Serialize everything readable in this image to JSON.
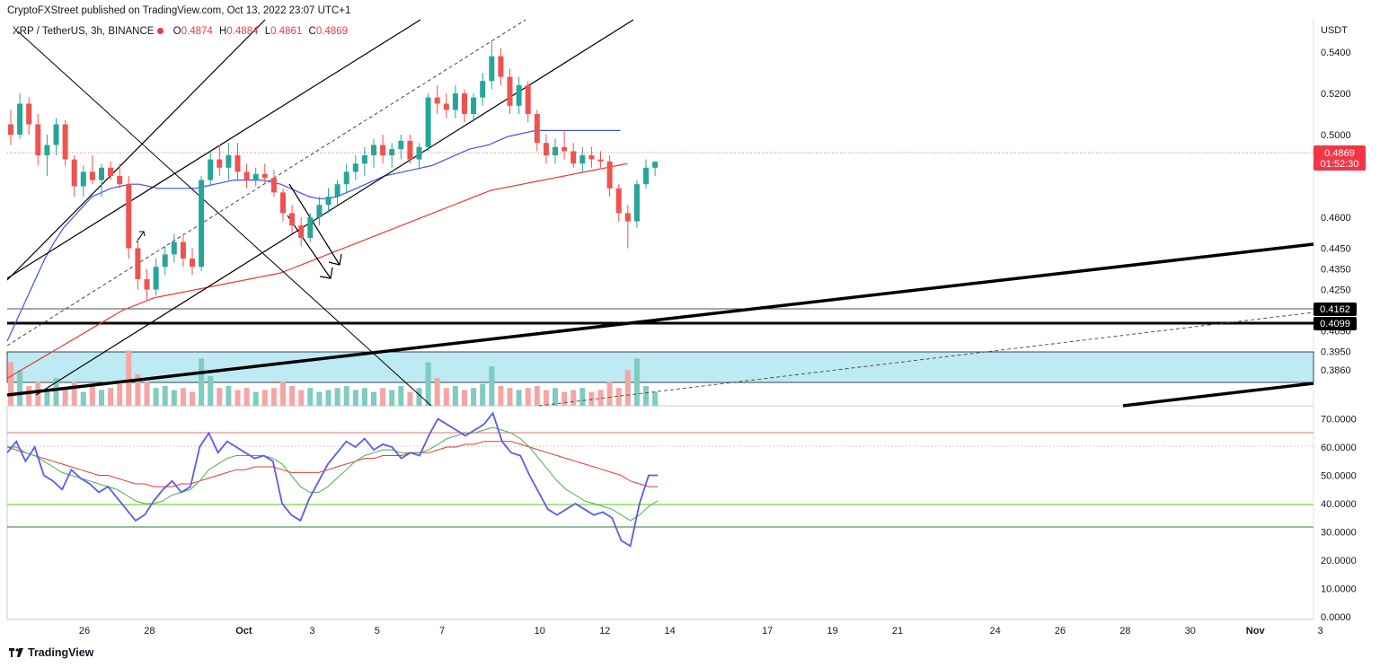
{
  "header": {
    "published": "CryptoFXStreet published on TradingView.com, Oct 13, 2022 23:07 UTC+1"
  },
  "symbol": {
    "name": "XRP / TetherUS, 3h, BINANCE",
    "o_label": "O",
    "o_value": "0.4874",
    "h_label": "H",
    "h_value": "0.4884",
    "l_label": "L",
    "l_value": "0.4861",
    "c_label": "C",
    "c_value": "0.4869"
  },
  "footer": {
    "brand": "TradingView"
  },
  "colors": {
    "up": "#26a69a",
    "down": "#ef5350",
    "ma_blue": "#3f51f5",
    "ma_red": "#e53935",
    "rsi": "#5b5bf0",
    "rsi_signal_green": "#4caf50",
    "rsi_signal_red": "#e53935",
    "zone": "#bdeaf3",
    "level_green": "#8be05a"
  },
  "chart_data": [
    {
      "type": "candlestick",
      "title": "XRP / TetherUS, 3h, BINANCE",
      "currency": "USDT",
      "y_ticks": [
        "0.5400",
        "0.5200",
        "0.5000",
        "0.4600",
        "0.4450",
        "0.4350",
        "0.4250",
        "0.4050",
        "0.3950",
        "0.3860"
      ],
      "x_ticks": [
        "26",
        "28",
        "Oct",
        "3",
        "5",
        "7",
        "10",
        "12",
        "14",
        "17",
        "19",
        "21",
        "24",
        "26",
        "28",
        "30",
        "Nov",
        "3"
      ],
      "price_labels": [
        {
          "value": "0.4869",
          "sub": "01:52:30",
          "style": "current"
        },
        {
          "value": "0.4162",
          "style": "level"
        },
        {
          "value": "0.4099",
          "style": "level"
        }
      ],
      "support_zone": [
        0.386,
        0.398
      ],
      "horizontal_levels": [
        0.4162,
        0.4099
      ],
      "ohlc": [
        [
          0.505,
          0.512,
          0.495,
          0.5
        ],
        [
          0.5,
          0.52,
          0.498,
          0.515
        ],
        [
          0.515,
          0.518,
          0.5,
          0.505
        ],
        [
          0.505,
          0.51,
          0.485,
          0.49
        ],
        [
          0.49,
          0.5,
          0.48,
          0.495
        ],
        [
          0.495,
          0.508,
          0.49,
          0.505
        ],
        [
          0.505,
          0.507,
          0.485,
          0.488
        ],
        [
          0.488,
          0.49,
          0.47,
          0.475
        ],
        [
          0.475,
          0.485,
          0.47,
          0.482
        ],
        [
          0.482,
          0.49,
          0.476,
          0.478
        ],
        [
          0.478,
          0.486,
          0.47,
          0.484
        ],
        [
          0.484,
          0.487,
          0.478,
          0.48
        ],
        [
          0.48,
          0.486,
          0.474,
          0.476
        ],
        [
          0.476,
          0.48,
          0.44,
          0.445
        ],
        [
          0.445,
          0.45,
          0.425,
          0.43
        ],
        [
          0.43,
          0.435,
          0.42,
          0.425
        ],
        [
          0.425,
          0.44,
          0.422,
          0.436
        ],
        [
          0.436,
          0.446,
          0.432,
          0.442
        ],
        [
          0.442,
          0.452,
          0.438,
          0.448
        ],
        [
          0.448,
          0.452,
          0.436,
          0.44
        ],
        [
          0.44,
          0.445,
          0.432,
          0.436
        ],
        [
          0.436,
          0.48,
          0.434,
          0.478
        ],
        [
          0.478,
          0.492,
          0.475,
          0.488
        ],
        [
          0.488,
          0.495,
          0.48,
          0.484
        ],
        [
          0.484,
          0.496,
          0.478,
          0.49
        ],
        [
          0.49,
          0.496,
          0.478,
          0.482
        ],
        [
          0.482,
          0.486,
          0.474,
          0.478
        ],
        [
          0.478,
          0.484,
          0.475,
          0.481
        ],
        [
          0.481,
          0.486,
          0.476,
          0.479
        ],
        [
          0.479,
          0.483,
          0.47,
          0.472
        ],
        [
          0.472,
          0.474,
          0.458,
          0.462
        ],
        [
          0.462,
          0.466,
          0.452,
          0.456
        ],
        [
          0.456,
          0.46,
          0.446,
          0.45
        ],
        [
          0.45,
          0.462,
          0.448,
          0.46
        ],
        [
          0.46,
          0.47,
          0.456,
          0.466
        ],
        [
          0.466,
          0.474,
          0.462,
          0.47
        ],
        [
          0.47,
          0.478,
          0.466,
          0.476
        ],
        [
          0.476,
          0.486,
          0.472,
          0.482
        ],
        [
          0.482,
          0.49,
          0.478,
          0.486
        ],
        [
          0.486,
          0.494,
          0.48,
          0.49
        ],
        [
          0.49,
          0.498,
          0.484,
          0.495
        ],
        [
          0.495,
          0.5,
          0.486,
          0.49
        ],
        [
          0.49,
          0.496,
          0.484,
          0.493
        ],
        [
          0.493,
          0.5,
          0.488,
          0.497
        ],
        [
          0.497,
          0.5,
          0.486,
          0.488
        ],
        [
          0.488,
          0.496,
          0.484,
          0.494
        ],
        [
          0.494,
          0.52,
          0.492,
          0.518
        ],
        [
          0.518,
          0.524,
          0.51,
          0.515
        ],
        [
          0.515,
          0.52,
          0.508,
          0.512
        ],
        [
          0.512,
          0.524,
          0.508,
          0.52
        ],
        [
          0.52,
          0.522,
          0.506,
          0.51
        ],
        [
          0.51,
          0.52,
          0.506,
          0.518
        ],
        [
          0.518,
          0.53,
          0.514,
          0.526
        ],
        [
          0.526,
          0.545,
          0.522,
          0.538
        ],
        [
          0.538,
          0.542,
          0.524,
          0.528
        ],
        [
          0.528,
          0.532,
          0.51,
          0.514
        ],
        [
          0.514,
          0.528,
          0.51,
          0.524
        ],
        [
          0.524,
          0.526,
          0.506,
          0.51
        ],
        [
          0.51,
          0.512,
          0.492,
          0.496
        ],
        [
          0.496,
          0.5,
          0.486,
          0.49
        ],
        [
          0.49,
          0.498,
          0.486,
          0.494
        ],
        [
          0.494,
          0.502,
          0.488,
          0.492
        ],
        [
          0.492,
          0.496,
          0.484,
          0.486
        ],
        [
          0.486,
          0.494,
          0.482,
          0.49
        ],
        [
          0.49,
          0.494,
          0.484,
          0.488
        ],
        [
          0.488,
          0.492,
          0.484,
          0.487
        ],
        [
          0.487,
          0.49,
          0.47,
          0.474
        ],
        [
          0.474,
          0.476,
          0.458,
          0.462
        ],
        [
          0.462,
          0.466,
          0.445,
          0.458
        ],
        [
          0.458,
          0.478,
          0.455,
          0.476
        ],
        [
          0.476,
          0.488,
          0.474,
          0.484
        ],
        [
          0.484,
          0.487,
          0.48,
          0.4869
        ]
      ],
      "ma_blue": [
        0.4,
        0.41,
        0.42,
        0.43,
        0.44,
        0.448,
        0.455,
        0.46,
        0.465,
        0.47,
        0.472,
        0.474,
        0.475,
        0.476,
        0.476,
        0.475,
        0.474,
        0.474,
        0.474,
        0.474,
        0.474,
        0.475,
        0.476,
        0.477,
        0.478,
        0.478,
        0.478,
        0.478,
        0.477,
        0.476,
        0.474,
        0.472,
        0.47,
        0.469,
        0.469,
        0.47,
        0.472,
        0.474,
        0.476,
        0.478,
        0.48,
        0.481,
        0.482,
        0.483,
        0.484,
        0.485,
        0.487,
        0.489,
        0.491,
        0.493,
        0.494,
        0.495,
        0.497,
        0.499,
        0.5,
        0.501,
        0.502,
        0.502,
        0.502,
        0.502,
        0.502,
        0.502,
        0.502,
        0.502,
        0.502,
        0.502
      ],
      "ma_red": [
        0.382,
        0.385,
        0.388,
        0.391,
        0.394,
        0.397,
        0.4,
        0.403,
        0.406,
        0.409,
        0.412,
        0.415,
        0.417,
        0.419,
        0.421,
        0.422,
        0.423,
        0.424,
        0.425,
        0.426,
        0.427,
        0.428,
        0.429,
        0.43,
        0.431,
        0.432,
        0.433,
        0.435,
        0.437,
        0.439,
        0.441,
        0.443,
        0.445,
        0.447,
        0.449,
        0.451,
        0.453,
        0.455,
        0.457,
        0.459,
        0.461,
        0.463,
        0.465,
        0.467,
        0.469,
        0.471,
        0.473,
        0.474,
        0.475,
        0.476,
        0.477,
        0.478,
        0.479,
        0.48,
        0.481,
        0.482,
        0.483,
        0.484,
        0.485,
        0.486
      ],
      "volume": [
        22,
        18,
        10,
        12,
        8,
        14,
        9,
        12,
        7,
        10,
        8,
        9,
        11,
        28,
        16,
        12,
        9,
        10,
        8,
        9,
        7,
        24,
        15,
        9,
        10,
        8,
        9,
        7,
        8,
        9,
        12,
        10,
        8,
        9,
        7,
        8,
        9,
        10,
        8,
        9,
        7,
        9,
        8,
        10,
        7,
        9,
        22,
        14,
        9,
        10,
        8,
        9,
        11,
        20,
        10,
        9,
        8,
        9,
        10,
        8,
        9,
        7,
        8,
        9,
        7,
        8,
        12,
        9,
        18,
        24,
        10,
        7
      ]
    },
    {
      "type": "line",
      "title": "RSI",
      "y_ticks": [
        "70.0000",
        "60.0000",
        "50.0000",
        "40.0000",
        "30.0000",
        "20.0000",
        "10.0000",
        "0.0000"
      ],
      "levels": [
        65,
        60,
        40,
        32
      ],
      "series": [
        {
          "values": [
            58,
            62,
            55,
            60,
            50,
            48,
            45,
            52,
            49,
            47,
            44,
            46,
            42,
            38,
            34,
            36,
            41,
            45,
            48,
            44,
            46,
            60,
            65,
            58,
            62,
            60,
            58,
            56,
            57,
            55,
            40,
            36,
            34,
            42,
            48,
            54,
            58,
            62,
            60,
            63,
            59,
            61,
            60,
            56,
            58,
            57,
            64,
            70,
            68,
            66,
            64,
            66,
            68,
            72,
            62,
            58,
            57,
            50,
            44,
            38,
            36,
            38,
            40,
            38,
            36,
            37,
            35,
            27,
            25,
            40,
            50,
            50
          ]
        },
        {
          "values": [
            60,
            60,
            58,
            57,
            55,
            53,
            51,
            50,
            49,
            48,
            47,
            46,
            45,
            43,
            41,
            40,
            40,
            41,
            43,
            44,
            45,
            48,
            52,
            54,
            56,
            57,
            57,
            57,
            57,
            56,
            54,
            50,
            46,
            44,
            44,
            46,
            49,
            52,
            55,
            57,
            58,
            59,
            59,
            58,
            58,
            58,
            59,
            61,
            63,
            64,
            65,
            65,
            66,
            67,
            66,
            65,
            63,
            60,
            56,
            52,
            48,
            45,
            43,
            41,
            40,
            39,
            38,
            36,
            34,
            36,
            39,
            41
          ]
        },
        {
          "values": [
            60,
            59,
            58,
            57,
            56,
            55,
            54,
            53,
            52,
            51,
            50,
            50,
            49,
            48,
            47,
            47,
            46,
            46,
            46,
            47,
            47,
            48,
            49,
            50,
            51,
            52,
            52,
            53,
            53,
            53,
            52,
            51,
            51,
            51,
            51,
            52,
            53,
            54,
            55,
            56,
            56,
            57,
            57,
            57,
            58,
            58,
            58,
            59,
            60,
            60,
            61,
            61,
            62,
            62,
            62,
            62,
            61,
            60,
            59,
            58,
            57,
            56,
            55,
            54,
            53,
            52,
            51,
            50,
            48,
            47,
            46,
            46
          ]
        }
      ]
    }
  ]
}
